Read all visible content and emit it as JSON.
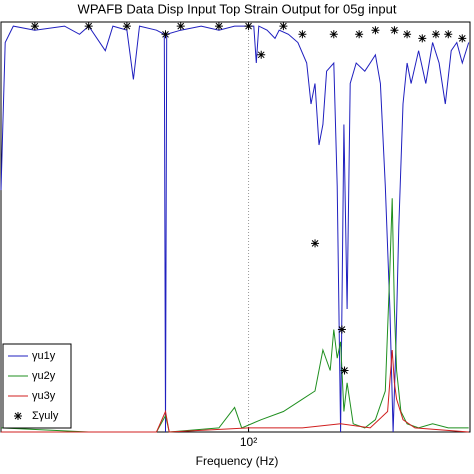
{
  "chart_data": {
    "type": "line",
    "title": "WPAFB Data Disp Input Top Strain Output for 05g input",
    "x_label": "Frequency (Hz)",
    "x_scale": "log",
    "xlim": [
      15.5,
      530
    ],
    "xticks": [
      {
        "value": 100,
        "label": "10²"
      }
    ],
    "ylim": [
      0,
      1
    ],
    "grid": true,
    "legend": "lower left",
    "series": [
      {
        "name": "γu1y",
        "color": "#1f1fbf",
        "marker": "none",
        "x": [
          15.5,
          16,
          17,
          20,
          25,
          28,
          30,
          34,
          36,
          40,
          42,
          44,
          50,
          53,
          53.5,
          54,
          60,
          70,
          80,
          90,
          104,
          106,
          108,
          115,
          122,
          126,
          135,
          145,
          155,
          160,
          165,
          170,
          175,
          180,
          190,
          195,
          200,
          205,
          210,
          215,
          225,
          240,
          250,
          260,
          270,
          280,
          290,
          297,
          303,
          310,
          320,
          330,
          340,
          360,
          380,
          400,
          420,
          440,
          460,
          480,
          500,
          525
        ],
        "values": [
          0.59,
          0.95,
          0.99,
          0.98,
          0.99,
          0.97,
          0.99,
          0.93,
          0.99,
          0.98,
          0.86,
          0.99,
          0.98,
          0.97,
          0.0,
          0.97,
          0.98,
          0.99,
          0.98,
          0.99,
          0.99,
          0.9,
          0.99,
          0.98,
          0.96,
          0.98,
          0.97,
          0.95,
          0.9,
          0.8,
          0.85,
          0.7,
          0.75,
          0.88,
          0.9,
          0.6,
          0.0,
          0.75,
          0.3,
          0.85,
          0.9,
          0.88,
          0.9,
          0.92,
          0.85,
          0.6,
          0.3,
          0.0,
          0.2,
          0.5,
          0.8,
          0.9,
          0.85,
          0.93,
          0.85,
          0.95,
          0.9,
          0.8,
          0.93,
          0.95,
          0.9,
          0.95
        ]
      },
      {
        "name": "γu2y",
        "color": "#1f8f1f",
        "marker": "none",
        "x": [
          15.5,
          30,
          50,
          53.5,
          55,
          80,
          90,
          95,
          110,
          130,
          150,
          165,
          175,
          185,
          190,
          195,
          200,
          205,
          210,
          220,
          240,
          260,
          280,
          290,
          295,
          300,
          305,
          315,
          330,
          360,
          400,
          450,
          525
        ],
        "values": [
          0.01,
          0.0,
          0.0,
          0.04,
          0.0,
          0.01,
          0.06,
          0.01,
          0.03,
          0.05,
          0.08,
          0.1,
          0.2,
          0.15,
          0.25,
          0.18,
          0.22,
          0.05,
          0.12,
          0.02,
          0.01,
          0.03,
          0.1,
          0.4,
          0.57,
          0.3,
          0.15,
          0.05,
          0.02,
          0.01,
          0.02,
          0.01,
          0.01
        ]
      },
      {
        "name": "γu3y",
        "color": "#d01f1f",
        "marker": "none",
        "x": [
          15.5,
          50,
          53.5,
          55,
          100,
          150,
          200,
          250,
          285,
          295,
          300,
          305,
          320,
          350,
          525
        ],
        "values": [
          0.0,
          0.0,
          0.05,
          0.0,
          0.01,
          0.01,
          0.02,
          0.01,
          0.05,
          0.2,
          0.12,
          0.08,
          0.03,
          0.01,
          0.0
        ]
      },
      {
        "name": "Σγuly",
        "color": "#000000",
        "marker": "star",
        "x": [
          20,
          30,
          40,
          53.5,
          60,
          80,
          100,
          110,
          130,
          150,
          165,
          190,
          202,
          206,
          230,
          260,
          300,
          330,
          370,
          410,
          450,
          500
        ],
        "values": [
          0.99,
          0.99,
          0.99,
          0.97,
          0.99,
          0.99,
          0.99,
          0.92,
          0.99,
          0.97,
          0.46,
          0.97,
          0.25,
          0.15,
          0.97,
          0.98,
          0.98,
          0.97,
          0.96,
          0.97,
          0.97,
          0.96
        ]
      }
    ]
  }
}
